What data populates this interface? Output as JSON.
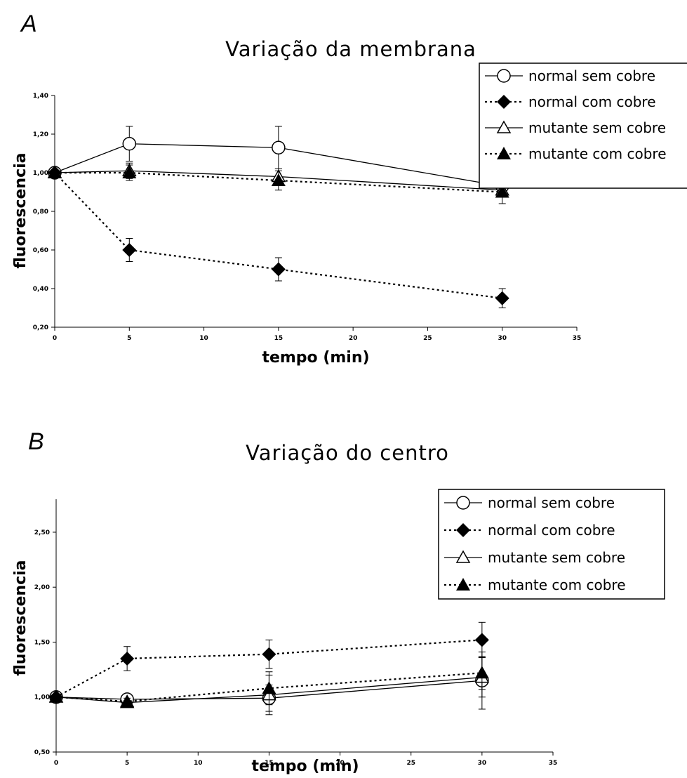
{
  "chart_data": [
    {
      "type": "line",
      "panel": "A",
      "title": "Variação da membrana",
      "xlabel": "tempo (min)",
      "ylabel": "fluorescencia",
      "xlim": [
        0,
        35
      ],
      "ylim": [
        0.2,
        1.4
      ],
      "xticks": [
        "0",
        "5",
        "10",
        "15",
        "20",
        "25",
        "30",
        "35"
      ],
      "yticks": [
        "0,20",
        "0,40",
        "0,60",
        "0,80",
        "1,00",
        "1,20",
        "1,40"
      ],
      "legend_position": "top-right",
      "grid": false,
      "series": [
        {
          "name": "normal sem cobre",
          "marker": "open-circle",
          "line": "solid",
          "x": [
            0,
            5,
            15,
            30
          ],
          "y": [
            1.0,
            1.15,
            1.13,
            0.93
          ],
          "err": [
            0,
            0.09,
            0.11,
            0.02
          ]
        },
        {
          "name": "normal com cobre",
          "marker": "filled-diamond",
          "line": "dotted",
          "x": [
            0,
            5,
            15,
            30
          ],
          "y": [
            1.0,
            0.6,
            0.5,
            0.35
          ],
          "err": [
            0,
            0.06,
            0.06,
            0.05
          ]
        },
        {
          "name": "mutante sem cobre",
          "marker": "open-triangle",
          "line": "solid",
          "x": [
            0,
            5,
            15,
            30
          ],
          "y": [
            1.0,
            1.01,
            0.98,
            0.91
          ],
          "err": [
            0,
            0.04,
            0.04,
            0.03
          ]
        },
        {
          "name": "mutante com cobre",
          "marker": "filled-triangle",
          "line": "dotted",
          "x": [
            0,
            5,
            15,
            30
          ],
          "y": [
            1.0,
            1.0,
            0.96,
            0.9
          ],
          "err": [
            0,
            0.04,
            0.05,
            0.06
          ]
        }
      ]
    },
    {
      "type": "line",
      "panel": "B",
      "title": "Variação do centro",
      "xlabel": "tempo (min)",
      "ylabel": "fluorescencia",
      "xlim": [
        0,
        35
      ],
      "ylim": [
        0.5,
        2.8
      ],
      "xticks": [
        "0",
        "5",
        "10",
        "15",
        "20",
        "25",
        "30",
        "35"
      ],
      "yticks": [
        "0,50",
        "1,00",
        "1,50",
        "2,00",
        "2,50"
      ],
      "legend_position": "top-right",
      "grid": false,
      "series": [
        {
          "name": "normal sem cobre",
          "marker": "open-circle",
          "line": "solid",
          "x": [
            0,
            5,
            15,
            30
          ],
          "y": [
            1.0,
            0.98,
            0.99,
            1.15
          ],
          "err": [
            0,
            0.03,
            0.12,
            0.26
          ]
        },
        {
          "name": "normal com cobre",
          "marker": "filled-diamond",
          "line": "dotted",
          "x": [
            0,
            5,
            15,
            30
          ],
          "y": [
            1.0,
            1.35,
            1.39,
            1.52
          ],
          "err": [
            0,
            0.11,
            0.13,
            0.16
          ]
        },
        {
          "name": "mutante sem cobre",
          "marker": "open-triangle",
          "line": "solid",
          "x": [
            0,
            5,
            15,
            30
          ],
          "y": [
            1.0,
            0.95,
            1.02,
            1.18
          ],
          "err": [
            0,
            0.02,
            0.18,
            0.18
          ]
        },
        {
          "name": "mutante com cobre",
          "marker": "filled-triangle",
          "line": "dotted",
          "x": [
            0,
            5,
            15,
            30
          ],
          "y": [
            1.0,
            0.96,
            1.08,
            1.22
          ],
          "err": [
            0,
            0.03,
            0.15,
            0.15
          ]
        }
      ]
    }
  ]
}
